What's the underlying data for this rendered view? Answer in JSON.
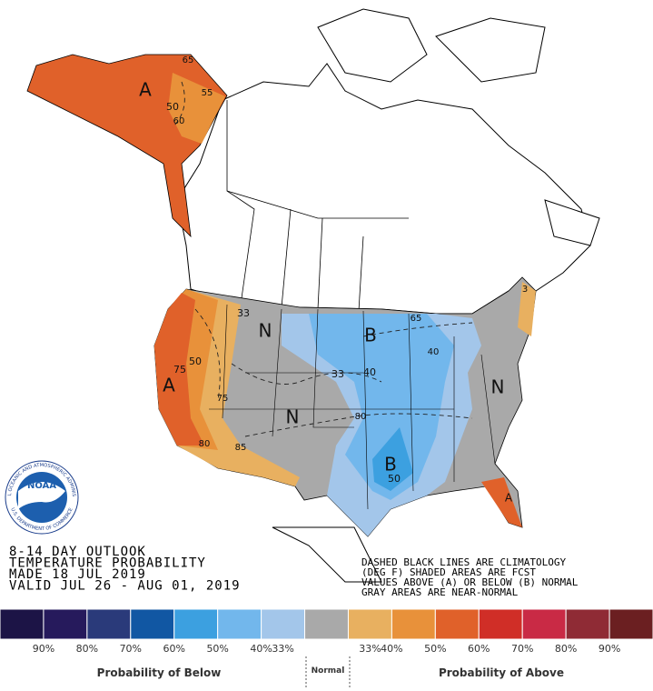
{
  "outlook": {
    "lines": [
      "8-14 DAY OUTLOOK",
      "TEMPERATURE PROBABILITY",
      "MADE  18 JUL 2019",
      "VALID  JUL 26 - AUG 01, 2019"
    ]
  },
  "notes": [
    "DASHED BLACK LINES ARE CLIMATOLOGY",
    "(DEG F) SHADED AREAS ARE FCST",
    "VALUES ABOVE (A) OR BELOW (B) NORMAL",
    "GRAY AREAS ARE NEAR-NORMAL"
  ],
  "logo": {
    "name": "NOAA",
    "ring_top": "NATIONAL OCEANIC AND ATMOSPHERIC ADMINISTRATION",
    "ring_bottom": "U.S. DEPARTMENT OF COMMERCE"
  },
  "map_labels": [
    "A",
    "65",
    "55",
    "50",
    "60",
    "33",
    "N",
    "B",
    "65",
    "40",
    "33",
    "40",
    "75",
    "50",
    "A",
    "75",
    "N",
    "80",
    "85",
    "80",
    "B",
    "50",
    "N",
    "A",
    "3"
  ],
  "legend": {
    "colors": [
      "#1c1446",
      "#261a5c",
      "#2a3a7a",
      "#1157a3",
      "#3ca0e0",
      "#72b7ec",
      "#a3c6ea",
      "#a9a9a9",
      "#e8b060",
      "#e8913a",
      "#e0612a",
      "#d02e27",
      "#c92a45",
      "#8f2b35",
      "#6b1f21"
    ],
    "labels": [
      "90%",
      "80%",
      "70%",
      "60%",
      "50%",
      "40%",
      "33%",
      "33%",
      "40%",
      "50%",
      "60%",
      "70%",
      "80%",
      "90%"
    ],
    "below": "Probability of Below",
    "normal": "Normal",
    "above": "Probability of Above"
  }
}
